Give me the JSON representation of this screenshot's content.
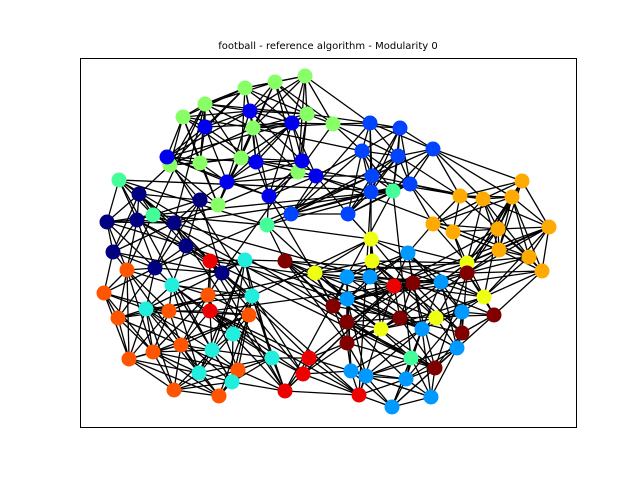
{
  "figure": {
    "title": "football - reference algorithm - Modularity 0"
  },
  "chart_data": {
    "type": "network",
    "title": "football - reference algorithm - Modularity 0",
    "node_count": 115,
    "edge_color": "#000000",
    "communities": [
      {
        "color": "#88ff66"
      },
      {
        "color": "#0000ee"
      },
      {
        "color": "#0044ff"
      },
      {
        "color": "#000080"
      },
      {
        "color": "#44ff99"
      },
      {
        "color": "#ffaa00"
      },
      {
        "color": "#eeff11"
      },
      {
        "color": "#0099ff"
      },
      {
        "color": "#800000"
      },
      {
        "color": "#ff5500"
      },
      {
        "color": "#22eedd"
      },
      {
        "color": "#ee0000"
      }
    ]
  }
}
